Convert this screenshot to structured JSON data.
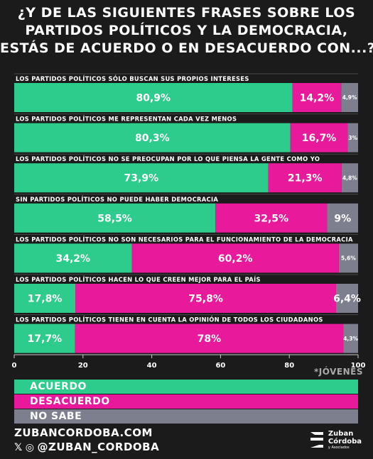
{
  "title_lines": [
    "¿Y DE LAS SIGUIENTES FRASES SOBRE LOS",
    "PARTIDOS POLÍTICOS Y LA DEMOCRACIA,",
    "ESTÁS DE ACUERDO O EN DESACUERDO CON...?"
  ],
  "colors": {
    "acuerdo": "#2ecc8c",
    "desacuerdo": "#e81a9b",
    "no_sabe": "#7e7f8e"
  },
  "chart_data": {
    "type": "bar",
    "orientation": "horizontal-stacked",
    "categories": [
      "LOS PARTIDOS POLÍTICOS SÓLO BUSCAN SUS PROPIOS INTERESES",
      "LOS PARTIDOS POLÍTICOS ME REPRESENTAN CADA VEZ MENOS",
      "LOS PARTIDOS POLÍTICOS NO SE PREOCUPAN POR LO QUE PIENSA LA GENTE COMO YO",
      "SIN PARTIDOS POLÍTICOS NO PUEDE HABER DEMOCRACIA",
      "LOS PARTIDOS POLÍTICOS NO SON NECESARIOS PARA EL FUNCIONAMIENTO DE LA DEMOCRACIA",
      "LOS PARTIDOS POLÍTICOS HACEN LO QUE CREEN MEJOR PARA EL PAÍS",
      "LOS PARTIDOS POLÍTICOS TIENEN EN CUENTA LA OPINIÓN DE TODOS LOS CIUDADANOS"
    ],
    "series": [
      {
        "name": "ACUERDO",
        "values": [
          80.9,
          80.3,
          73.9,
          58.5,
          34.2,
          17.8,
          17.7
        ],
        "labels": [
          "80,9%",
          "80,3%",
          "73,9%",
          "58,5%",
          "34,2%",
          "17,8%",
          "17,7%"
        ]
      },
      {
        "name": "DESACUERDO",
        "values": [
          14.2,
          16.7,
          21.3,
          32.5,
          60.2,
          75.8,
          78
        ],
        "labels": [
          "14,2%",
          "16,7%",
          "21,3%",
          "32,5%",
          "60,2%",
          "75,8%",
          "78%"
        ]
      },
      {
        "name": "NO SABE",
        "values": [
          4.9,
          3,
          4.8,
          9,
          5.6,
          6.4,
          4.3
        ],
        "labels": [
          "4,9%",
          "3%",
          "4,8%",
          "9%",
          "5,6%",
          "6,4%",
          "4,3%"
        ]
      }
    ],
    "xlim": [
      0,
      100
    ],
    "xticks": [
      0,
      20,
      40,
      60,
      80,
      100
    ],
    "legend_position": "bottom"
  },
  "sample_tag": "*JÓVENES",
  "footer": {
    "website": "ZUBANCORDOBA.COM",
    "social_handle": "@ZUBAN_CORDOBA"
  },
  "logo": {
    "line1": "Zuban",
    "line2": "Córdoba",
    "line3": "y Asociados"
  }
}
